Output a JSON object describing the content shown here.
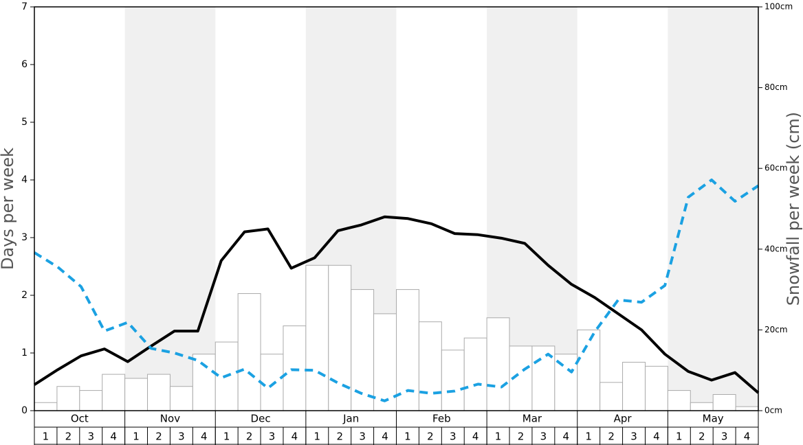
{
  "chart_data": {
    "type": "bar-line",
    "ylabel": "Days per week",
    "y2label": "Snowfall per week (cm)",
    "groups": [
      "Oct",
      "Nov",
      "Dec",
      "Jan",
      "Feb",
      "Mar",
      "Apr",
      "May"
    ],
    "categories": [
      "1",
      "2",
      "3",
      "4",
      "1",
      "2",
      "3",
      "4",
      "1",
      "2",
      "3",
      "4",
      "1",
      "2",
      "3",
      "4",
      "1",
      "2",
      "3",
      "4",
      "1",
      "2",
      "3",
      "4",
      "1",
      "2",
      "3",
      "4",
      "1",
      "2",
      "3",
      "4"
    ],
    "band_color": "#f0f0f0",
    "series": [
      {
        "type": "bar",
        "axis": "y2",
        "color": "#ffffff",
        "values": [
          2,
          6,
          5,
          9,
          8,
          9,
          6,
          14,
          17,
          29,
          14,
          21,
          36,
          36,
          30,
          24,
          30,
          22,
          15,
          18,
          23,
          16,
          16,
          14,
          20,
          7,
          12,
          11,
          5,
          2,
          4,
          1
        ]
      },
      {
        "type": "line",
        "color": "#000000",
        "dashed": false,
        "values": [
          0.45,
          0.71,
          0.95,
          1.07,
          0.85,
          1.12,
          1.38,
          1.38,
          2.6,
          3.1,
          3.15,
          2.47,
          2.65,
          3.12,
          3.22,
          3.36,
          3.33,
          3.24,
          3.07,
          3.05,
          2.99,
          2.9,
          2.52,
          2.19,
          1.96,
          1.68,
          1.4,
          0.98,
          0.68,
          0.53,
          0.66,
          0.31
        ]
      },
      {
        "type": "line",
        "color": "#1ba1e2",
        "dashed": true,
        "values": [
          2.74,
          2.49,
          2.15,
          1.38,
          1.53,
          1.08,
          1.0,
          0.87,
          0.57,
          0.72,
          0.39,
          0.71,
          0.7,
          0.48,
          0.3,
          0.17,
          0.35,
          0.3,
          0.34,
          0.46,
          0.41,
          0.72,
          0.98,
          0.67,
          1.37,
          1.92,
          1.88,
          2.17,
          3.7,
          4.0,
          3.63,
          3.9
        ]
      }
    ],
    "ylim": [
      0,
      7
    ],
    "yticks": [
      0,
      1,
      2,
      3,
      4,
      5,
      6,
      7
    ],
    "y2lim": [
      0,
      100
    ],
    "y2ticks": [
      {
        "value": 0,
        "label": "0cm"
      },
      {
        "value": 20,
        "label": "20cm"
      },
      {
        "value": 40,
        "label": "40cm"
      },
      {
        "value": 60,
        "label": "60cm"
      },
      {
        "value": 80,
        "label": "80cm"
      },
      {
        "value": 100,
        "label": "100cm"
      }
    ]
  }
}
